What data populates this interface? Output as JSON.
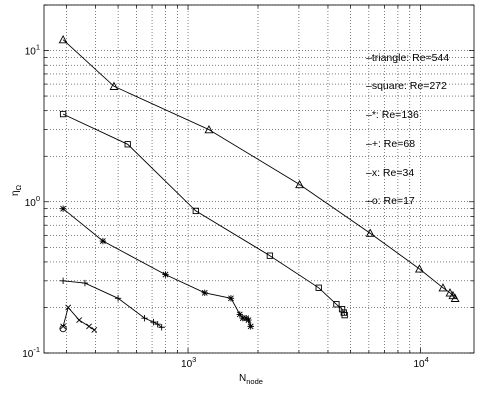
{
  "chart_data": {
    "type": "line",
    "title": "",
    "xlabel": {
      "main": "N",
      "sub": "node"
    },
    "ylabel": {
      "main": "η",
      "sub": "Ω"
    },
    "x_scale": "log",
    "y_scale": "log",
    "xlim": [
      240,
      17000
    ],
    "ylim": [
      0.1,
      20
    ],
    "x_ticks": [
      {
        "value": 1000,
        "base": "10",
        "exp": "3"
      },
      {
        "value": 10000,
        "base": "10",
        "exp": "4"
      }
    ],
    "y_ticks": [
      {
        "value": 0.1,
        "base": "10",
        "exp": "-1"
      },
      {
        "value": 1,
        "base": "10",
        "exp": "0"
      },
      {
        "value": 10,
        "base": "10",
        "exp": "1"
      }
    ],
    "grid": true,
    "legend_position": "right",
    "legend": [
      {
        "marker": "triangle",
        "text": "–triangle: Re=544"
      },
      {
        "marker": "square",
        "text": "–square: Re=272"
      },
      {
        "marker": "star",
        "text": "–*: Re=136"
      },
      {
        "marker": "plus",
        "text": "–+: Re=68"
      },
      {
        "marker": "x",
        "text": "–x: Re=34"
      },
      {
        "marker": "circle",
        "text": "–o: Re=17"
      }
    ],
    "series": [
      {
        "marker": "triangle",
        "x": [
          290,
          480,
          1230,
          3020,
          6080,
          9900,
          12500,
          13400,
          13800,
          14100
        ],
        "y": [
          11.8,
          5.8,
          3.0,
          1.3,
          0.62,
          0.36,
          0.27,
          0.25,
          0.24,
          0.23
        ]
      },
      {
        "marker": "square",
        "x": [
          290,
          550,
          1080,
          2250,
          3650,
          4350,
          4600,
          4680,
          4720
        ],
        "y": [
          3.8,
          2.4,
          0.87,
          0.44,
          0.27,
          0.21,
          0.195,
          0.185,
          0.178
        ]
      },
      {
        "marker": "star",
        "x": [
          290,
          430,
          800,
          1180,
          1530,
          1670,
          1720,
          1780,
          1820,
          1860
        ],
        "y": [
          0.9,
          0.55,
          0.33,
          0.25,
          0.23,
          0.18,
          0.17,
          0.17,
          0.165,
          0.15
        ]
      },
      {
        "marker": "plus",
        "x": [
          290,
          360,
          500,
          650,
          710,
          740,
          770
        ],
        "y": [
          0.3,
          0.29,
          0.23,
          0.17,
          0.16,
          0.155,
          0.148
        ]
      },
      {
        "marker": "x",
        "x": [
          290,
          305,
          340,
          375,
          395
        ],
        "y": [
          0.15,
          0.2,
          0.165,
          0.15,
          0.142
        ]
      },
      {
        "marker": "circle",
        "x": [
          290
        ],
        "y": [
          0.145
        ]
      }
    ]
  }
}
